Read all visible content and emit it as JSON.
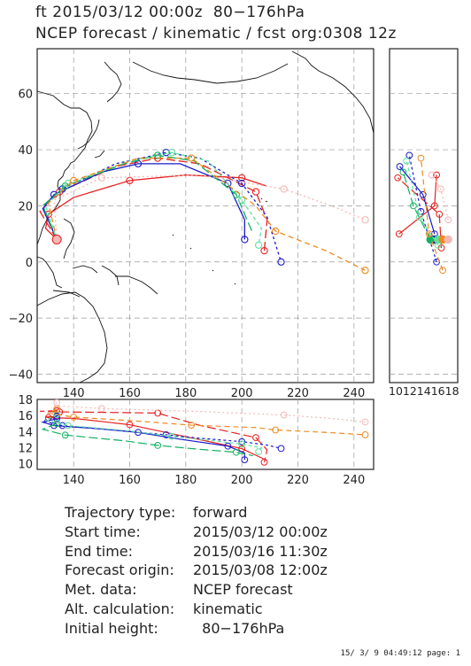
{
  "header": {
    "line1": "ft 2015/03/12 00:00z  80−176hPa",
    "line2": "NCEP forecast / kinematic / fcst org:0308 12z"
  },
  "axes": {
    "lon_ticks": [
      "140",
      "160",
      "180",
      "200",
      "220",
      "240"
    ],
    "lat_ticks": [
      "60",
      "40",
      "20",
      "0",
      "−20",
      "−40"
    ],
    "side_ticks": "1012141618",
    "bottom_y_ticks": [
      "18",
      "16",
      "14",
      "12",
      "10"
    ]
  },
  "chart_data": {
    "type": "line",
    "description": "",
    "colors": [
      "#e8201f",
      "#e8201f",
      "#1a1acc",
      "#1a1acc",
      "#10b060",
      "#60e0a0",
      "#ee8a1f",
      "#f4b8b8"
    ],
    "series": [
      {
        "color": "#e8201f",
        "dash": "none",
        "path": [
          [
            134,
            8
          ],
          [
            130,
            12
          ],
          [
            131,
            17
          ],
          [
            140,
            23
          ],
          [
            160,
            29
          ],
          [
            180,
            31
          ],
          [
            200,
            30
          ],
          [
            209,
            27
          ]
        ],
        "side": [
          [
            15.9,
            31
          ],
          [
            15.6,
            20
          ],
          [
            10.4,
            10
          ]
        ]
      },
      {
        "color": "#e8201f",
        "dash": "10,4",
        "path": [
          [
            134,
            8
          ],
          [
            128,
            18
          ],
          [
            135,
            25
          ],
          [
            155,
            34
          ],
          [
            170,
            37
          ],
          [
            185,
            35
          ],
          [
            205,
            25
          ],
          [
            209,
            15
          ],
          [
            208,
            4
          ]
        ],
        "side": [
          [
            16.6,
            5
          ],
          [
            16.3,
            17
          ],
          [
            10.2,
            30
          ]
        ]
      },
      {
        "color": "#1a1acc",
        "dash": "none",
        "path": [
          [
            134,
            8
          ],
          [
            129,
            19
          ],
          [
            133,
            24
          ],
          [
            150,
            32
          ],
          [
            163,
            35
          ],
          [
            178,
            35
          ],
          [
            195,
            28
          ],
          [
            201,
            15
          ],
          [
            201,
            8
          ]
        ],
        "side": [
          [
            15.6,
            10
          ],
          [
            13.9,
            24
          ],
          [
            10.5,
            34
          ]
        ]
      },
      {
        "color": "#1a1acc",
        "dash": "3,3",
        "path": [
          [
            134,
            8
          ],
          [
            129,
            20
          ],
          [
            136,
            26
          ],
          [
            155,
            35
          ],
          [
            173,
            39
          ],
          [
            185,
            37
          ],
          [
            200,
            28
          ],
          [
            209,
            16
          ],
          [
            214,
            0
          ]
        ],
        "side": [
          [
            15.9,
            0
          ],
          [
            13.6,
            18
          ],
          [
            11.9,
            38
          ]
        ]
      },
      {
        "color": "#10b060",
        "dash": "10,4",
        "path": [
          [
            134,
            8
          ],
          [
            129,
            20
          ],
          [
            137,
            27
          ],
          [
            158,
            35
          ],
          [
            170,
            38
          ],
          [
            183,
            36
          ],
          [
            198,
            24
          ],
          [
            204,
            10
          ]
        ],
        "side": [
          [
            15.0,
            8
          ],
          [
            12.5,
            20
          ],
          [
            11.0,
            32
          ]
        ]
      },
      {
        "color": "#60e0a0",
        "dash": "4,3",
        "path": [
          [
            134,
            8
          ],
          [
            130,
            20
          ],
          [
            138,
            28
          ],
          [
            160,
            36
          ],
          [
            175,
            39
          ],
          [
            188,
            36
          ],
          [
            200,
            22
          ],
          [
            207,
            12
          ],
          [
            206,
            6
          ]
        ],
        "side": [
          [
            16.1,
            6
          ],
          [
            13.4,
            16
          ],
          [
            11.5,
            36
          ]
        ]
      },
      {
        "color": "#ee8a1f",
        "dash": "6,4",
        "path": [
          [
            134,
            8
          ],
          [
            131,
            21
          ],
          [
            140,
            29
          ],
          [
            163,
            37
          ],
          [
            182,
            37
          ],
          [
            205,
            20
          ],
          [
            212,
            11
          ],
          [
            230,
            4
          ],
          [
            244,
            -3
          ]
        ],
        "side": [
          [
            16.8,
            -3
          ],
          [
            14.8,
            10
          ],
          [
            13.6,
            37
          ]
        ]
      },
      {
        "color": "#f4b8b8",
        "dash": "2,3",
        "path": [
          [
            134,
            8
          ],
          [
            133,
            22
          ],
          [
            150,
            30
          ],
          [
            185,
            31
          ],
          [
            215,
            26
          ],
          [
            232,
            20
          ],
          [
            244,
            15
          ]
        ],
        "side": [
          [
            17.6,
            15
          ],
          [
            16.5,
            26
          ],
          [
            15.2,
            31
          ]
        ]
      }
    ]
  },
  "info": [
    {
      "label": "Trajectory type:",
      "value": "forward"
    },
    {
      "label": "Start time:",
      "value": "2015/03/12 00:00z"
    },
    {
      "label": "End time:",
      "value": "2015/03/16 11:30z"
    },
    {
      "label": "Forecast origin:",
      "value": "2015/03/08 12:00z"
    },
    {
      "label": "Met. data:",
      "value": "NCEP forecast"
    },
    {
      "label": "Alt. calculation:",
      "value": "kinematic"
    },
    {
      "label": "Initial height:",
      "value": "  80−176hPa"
    }
  ],
  "footer": {
    "stamp": "15/ 3/ 9 04:49:12 page: 1"
  }
}
